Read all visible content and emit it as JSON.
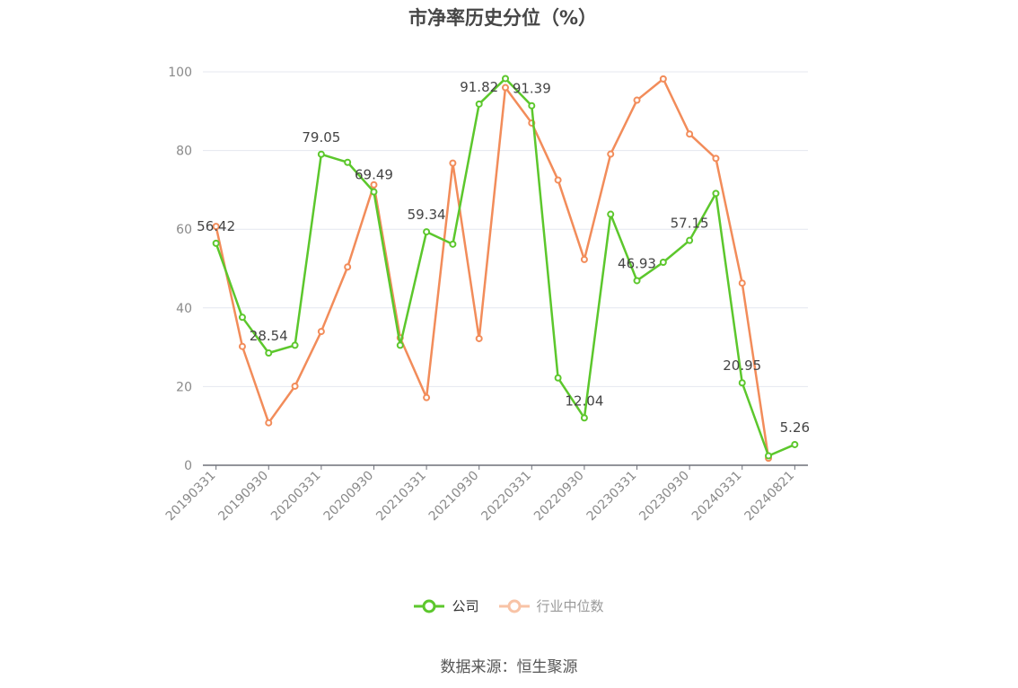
{
  "chart_data": {
    "type": "line",
    "title": "市净率历史分位（%）",
    "ylim": [
      0,
      100
    ],
    "yticks": [
      0,
      20,
      40,
      60,
      80,
      100
    ],
    "xtick_labels": [
      "20190331",
      "20190930",
      "20200331",
      "20200930",
      "20210331",
      "20210930",
      "20220331",
      "20220930",
      "20230331",
      "20230930",
      "20240331",
      "20240821"
    ],
    "x": [
      "20190331",
      "20190630",
      "20190930",
      "20191231",
      "20200331",
      "20200630",
      "20200930",
      "20201231",
      "20210331",
      "20210630",
      "20210930",
      "20211231",
      "20220331",
      "20220630",
      "20220930",
      "20221231",
      "20230331",
      "20230630",
      "20230930",
      "20231231",
      "20240331",
      "20240630",
      "20240821"
    ],
    "series": [
      {
        "name": "公司",
        "color": "#5cc72c",
        "values": [
          56.42,
          37.6,
          28.54,
          30.5,
          79.05,
          77.0,
          69.49,
          30.5,
          59.34,
          56.2,
          91.82,
          98.3,
          91.39,
          22.2,
          12.04,
          63.8,
          46.93,
          51.6,
          57.15,
          69.1,
          20.95,
          2.4,
          5.26
        ],
        "labels": [
          "56.42",
          "",
          "28.54",
          "",
          "79.05",
          "",
          "69.49",
          "",
          "59.34",
          "",
          "91.82",
          "",
          "91.39",
          "",
          "12.04",
          "",
          "46.93",
          "",
          "57.15",
          "",
          "20.95",
          "",
          "5.26"
        ]
      },
      {
        "name": "行业中位数",
        "color": "#f28c5a",
        "values": [
          60.7,
          30.2,
          10.8,
          20.1,
          34.0,
          50.4,
          71.3,
          32.4,
          17.2,
          76.8,
          32.2,
          96.0,
          87.0,
          72.5,
          52.3,
          79.1,
          92.8,
          98.2,
          84.2,
          78.0,
          46.3,
          1.8,
          null
        ]
      }
    ],
    "legend": {
      "position": "bottom",
      "items": [
        "公司",
        "行业中位数"
      ]
    },
    "grid": true
  },
  "source_text": "数据来源：恒生聚源"
}
